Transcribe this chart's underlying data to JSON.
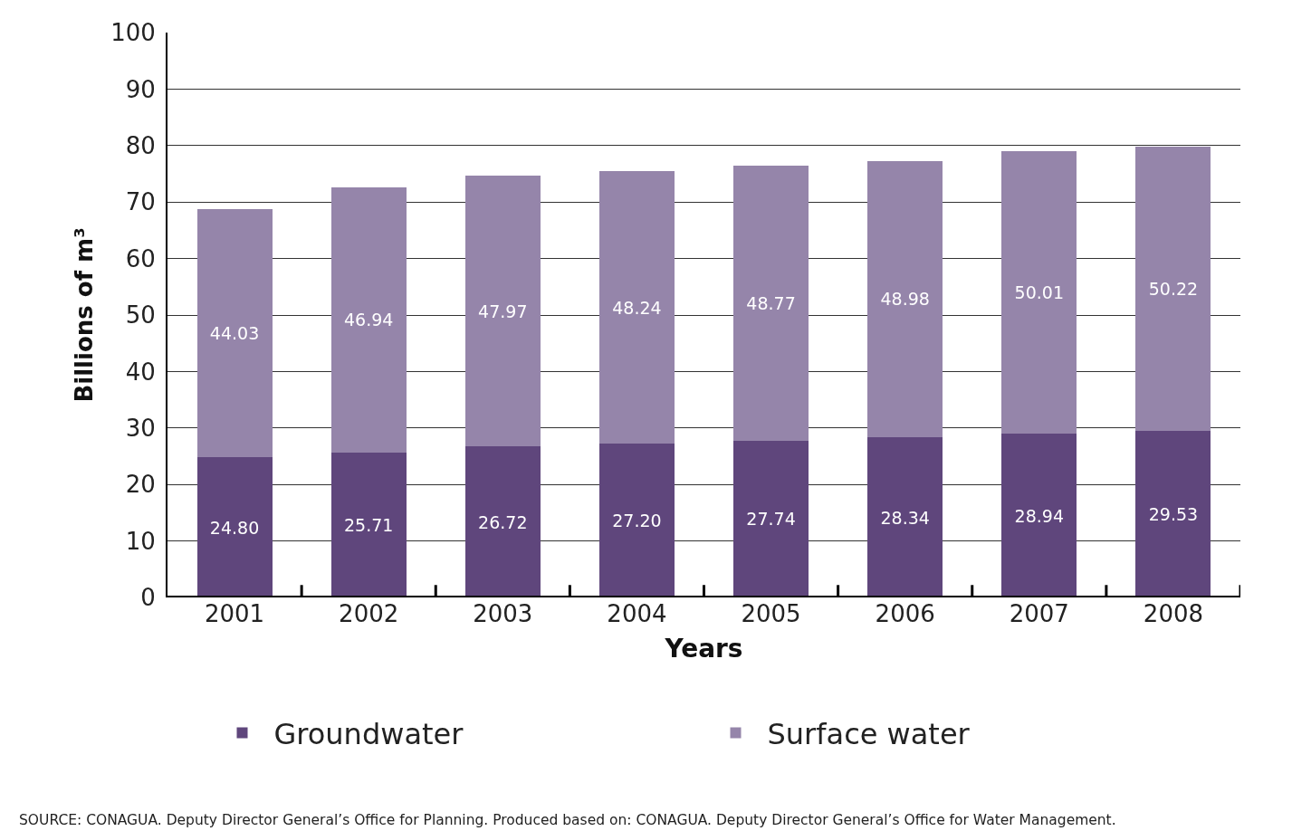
{
  "chart_data": {
    "type": "bar",
    "stacked": true,
    "xlabel": "Years",
    "ylabel": "Billions of m³",
    "categories": [
      "2001",
      "2002",
      "2003",
      "2004",
      "2005",
      "2006",
      "2007",
      "2008"
    ],
    "series": [
      {
        "name": "Groundwater",
        "color": "#5f467c",
        "values": [
          24.8,
          25.71,
          26.72,
          27.2,
          27.74,
          28.34,
          28.94,
          29.53
        ],
        "value_labels": [
          "24.80",
          "25.71",
          "26.72",
          "27.20",
          "27.74",
          "28.34",
          "28.94",
          "29.53"
        ]
      },
      {
        "name": "Surface water",
        "color": "#9585aa",
        "values": [
          44.03,
          46.94,
          47.97,
          48.24,
          48.77,
          48.98,
          50.01,
          50.22
        ],
        "value_labels": [
          "44.03",
          "46.94",
          "47.97",
          "48.24",
          "48.77",
          "48.98",
          "50.01",
          "50.22"
        ]
      }
    ],
    "ylim": [
      0,
      100
    ],
    "yticks": [
      0,
      10,
      20,
      30,
      40,
      50,
      60,
      70,
      80,
      90,
      100
    ],
    "grid": "y",
    "legend": "bottom",
    "annotations": [
      "SOURCE: CONAGUA. Deputy Director General’s Office for Planning. Produced based on: CONAGUA. Deputy Director General’s Office for Water Management."
    ]
  }
}
